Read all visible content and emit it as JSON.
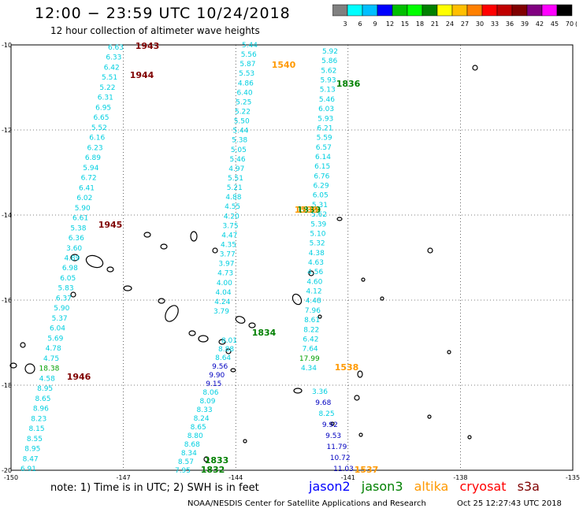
{
  "header": {
    "title": "12:00 − 23:59 UTC 10/24/2018",
    "subtitle": "12 hour collection of altimeter wave heights"
  },
  "colorbar": {
    "colors": [
      "#808080",
      "#00ffff",
      "#00bfff",
      "#0000ff",
      "#00bf00",
      "#00ff00",
      "#008000",
      "#ffff00",
      "#ffbf00",
      "#ff8000",
      "#ff0000",
      "#c00000",
      "#800000",
      "#800080",
      "#ff00ff",
      "#000000"
    ],
    "labels": [
      "3",
      "6",
      "9",
      "12",
      "15",
      "18",
      "21",
      "24",
      "27",
      "30",
      "33",
      "36",
      "39",
      "42",
      "45",
      "70"
    ],
    "unit": "(ft)"
  },
  "axes": {
    "lon_ticks": [
      "-150",
      "-147",
      "-144",
      "-141",
      "-138",
      "-135"
    ],
    "lat_ticks": [
      "-10",
      "-12",
      "-14",
      "-16",
      "-18",
      "-20"
    ]
  },
  "map_view": {
    "lon_range": [
      -150,
      -135
    ],
    "lat_range": [
      -20,
      -10
    ]
  },
  "tracks": {
    "saral_1540": {
      "color": "#00cfe0",
      "values": [
        "5.44",
        "5.56",
        "5.87",
        "5.53",
        "4.86",
        "6.40",
        "5.25",
        "5.22",
        "5.50",
        "5.44",
        "5.38",
        "5.05",
        "5.46",
        "4.97",
        "5.51",
        "5.21",
        "4.88",
        "4.55",
        "4.20",
        "3.75",
        "4.47",
        "4.35",
        "3.77",
        "3.97",
        "4.73",
        "4.00",
        "4.04",
        "4.24",
        "3.79"
      ]
    },
    "saral_1538": {
      "color": "#00cfe0",
      "values": [
        "5.92",
        "5.86",
        "5.62",
        "5.93",
        "5.13",
        "5.46",
        "6.03",
        "5.93",
        "6.21",
        "5.59",
        "6.57",
        "6.14",
        "6.15",
        "6.76",
        "6.29",
        "6.05",
        "5.31",
        "5.62",
        "5.39",
        "5.10",
        "5.32",
        "4.38",
        "4.63",
        "4.56",
        "4.60",
        "4.12",
        "4.48",
        "7.96",
        "8.61",
        "8.22",
        "6.42",
        "7.64",
        "17.99",
        "4.34"
      ]
    },
    "west_1943": {
      "color": "#00cfe0",
      "values": [
        "6.63",
        "6.33",
        "6.42",
        "5.51",
        "5.22",
        "6.31",
        "6.95",
        "6.65",
        "5.52",
        "6.16",
        "6.23",
        "6.89",
        "5.94",
        "6.72",
        "6.41",
        "6.02",
        "5.90",
        "6.61",
        "5.38",
        "6.36",
        "3.60",
        "4.89",
        "6.98",
        "6.05",
        "5.83",
        "6.37",
        "5.90",
        "5.37",
        "6.04",
        "5.69",
        "4.78",
        "4.75",
        "18.38",
        "4.58",
        "8.95",
        "8.65",
        "8.96",
        "8.23",
        "8.15",
        "8.55",
        "8.95",
        "8.47",
        "6.91"
      ]
    },
    "south_1832": {
      "color": "#00cfe0",
      "values": [
        "8.01",
        "8.88",
        "8.64",
        "9.56",
        "9.90",
        "9.15",
        "8.06",
        "8.09",
        "8.33",
        "8.24",
        "8.65",
        "8.80",
        "8.68",
        "8.34",
        "8.57",
        "7.95"
      ]
    },
    "southeast_1537": {
      "color": "#00cfe0",
      "values": [
        "3.36",
        "9.68",
        "8.25",
        "9.92",
        "9.53",
        "11.79",
        "10.72",
        "11.03"
      ]
    }
  },
  "pass_labels": [
    {
      "text": "1943",
      "color": "#800000"
    },
    {
      "text": "1944",
      "color": "#800000"
    },
    {
      "text": "1945",
      "color": "#800000"
    },
    {
      "text": "1946",
      "color": "#800000"
    },
    {
      "text": "1540",
      "color": "#ff9900"
    },
    {
      "text": "1836",
      "color": "#008000"
    },
    {
      "text": "1839",
      "color": "#008000"
    },
    {
      "text": "1539",
      "color": "#ff9900"
    },
    {
      "text": "1834",
      "color": "#008000"
    },
    {
      "text": "1538",
      "color": "#ff9900"
    },
    {
      "text": "1833",
      "color": "#008000"
    },
    {
      "text": "1832",
      "color": "#008000"
    },
    {
      "text": "1537",
      "color": "#ff9900"
    }
  ],
  "footer": {
    "note": "note: 1) Time is in UTC; 2) SWH is in feet",
    "satellites": [
      {
        "name": "jason2",
        "color": "#0000ff"
      },
      {
        "name": "jason3",
        "color": "#008000"
      },
      {
        "name": "altika",
        "color": "#ff9900"
      },
      {
        "name": "cryosat",
        "color": "#ff0000"
      },
      {
        "name": "s3a",
        "color": "#800000"
      }
    ],
    "credit": "NOAA/NESDIS Center for Satellite Applications and Research",
    "timestamp": "Oct 25 12:27:43 UTC 2018"
  }
}
